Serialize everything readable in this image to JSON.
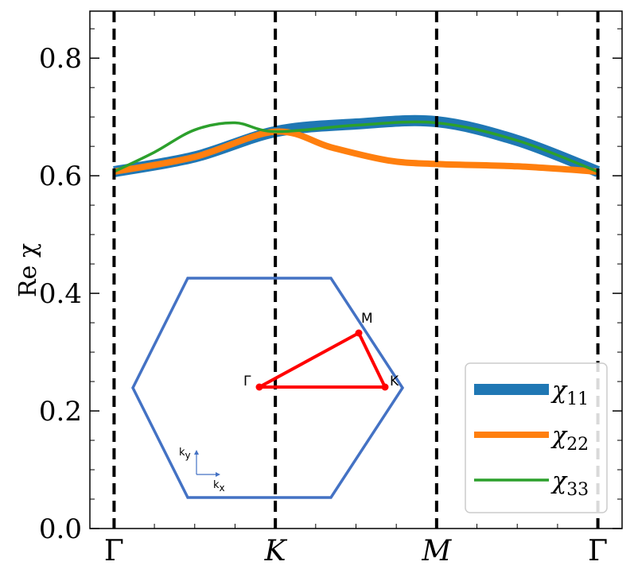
{
  "chart_data": {
    "type": "line",
    "title": "",
    "xlabel": "",
    "ylabel": "Re χ",
    "ylim": [
      0.0,
      0.88
    ],
    "yticks": [
      "0.0",
      "0.2",
      "0.4",
      "0.6",
      "0.8"
    ],
    "ytick_values": [
      0.0,
      0.2,
      0.4,
      0.6,
      0.8
    ],
    "xticks": [
      "Γ",
      "K",
      "M",
      "Γ"
    ],
    "xtick_values": [
      0,
      1,
      2,
      3
    ],
    "xlim": [
      -0.15,
      3.15
    ],
    "series": [
      {
        "name": "χ11",
        "legend_label": "χ",
        "legend_sub": "11",
        "color": "#1f77b4",
        "x": [
          0,
          0.5,
          1,
          1.5,
          2,
          2.5,
          3
        ],
        "values": [
          0.607,
          0.632,
          0.675,
          0.688,
          0.692,
          0.66,
          0.607
        ]
      },
      {
        "name": "χ22",
        "legend_label": "χ",
        "legend_sub": "22",
        "color": "#ff7f0e",
        "x": [
          0,
          0.5,
          1,
          1.35,
          1.7,
          2,
          2.5,
          3
        ],
        "values": [
          0.607,
          0.632,
          0.675,
          0.648,
          0.626,
          0.62,
          0.616,
          0.607
        ]
      },
      {
        "name": "χ33",
        "legend_label": "χ",
        "legend_sub": "33",
        "color": "#2ca02c",
        "x": [
          0,
          0.25,
          0.5,
          0.75,
          1,
          1.5,
          2,
          2.5,
          3
        ],
        "values": [
          0.607,
          0.64,
          0.678,
          0.69,
          0.675,
          0.686,
          0.69,
          0.66,
          0.607
        ]
      }
    ],
    "legend_position": "bottom-right",
    "vertical_lines_at": [
      0,
      1,
      2,
      3
    ],
    "inset": {
      "description": "hexagonal Brillouin zone",
      "hexagon_color": "#4472c4",
      "path_color": "#ff0000",
      "points": [
        "Γ",
        "M",
        "K"
      ],
      "axis_x_label": "k",
      "axis_x_sub": "x",
      "axis_y_label": "k",
      "axis_y_sub": "y"
    }
  }
}
